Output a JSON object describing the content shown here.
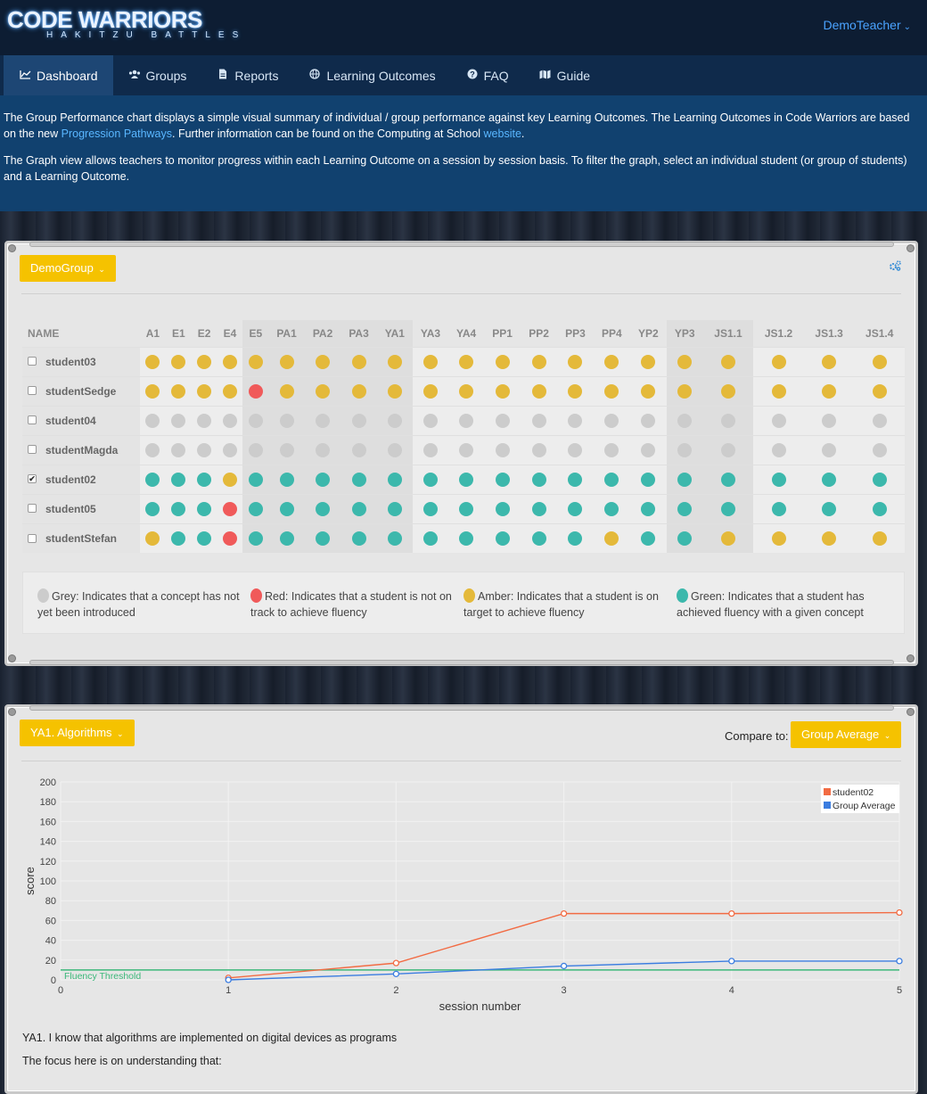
{
  "logo": {
    "main": "CODE WARRIORS",
    "sub": "HAKITZU BATTLES"
  },
  "user_menu": {
    "label": "DemoTeacher"
  },
  "nav": {
    "items": [
      {
        "label": "Dashboard",
        "icon": "chart-line-icon"
      },
      {
        "label": "Groups",
        "icon": "users-icon"
      },
      {
        "label": "Reports",
        "icon": "file-icon"
      },
      {
        "label": "Learning Outcomes",
        "icon": "globe-icon"
      },
      {
        "label": "FAQ",
        "icon": "question-circle-icon"
      },
      {
        "label": "Guide",
        "icon": "map-icon"
      }
    ]
  },
  "intro": {
    "p1_part1": "The Group Performance chart displays a simple visual summary of individual / group performance against key Learning Outcomes. The Learning Outcomes in Code Warriors are based on the new ",
    "p1_link1": "Progression Pathways",
    "p1_part2": ". Further information can be found on the Computing at School ",
    "p1_link2": "website",
    "p1_part3": ".",
    "p2": "The Graph view allows teachers to monitor progress within each Learning Outcome on a session by session basis. To filter the graph, select an individual student (or group of students) and a Learning Outcome."
  },
  "group_panel": {
    "group_dropdown": "DemoGroup",
    "settings_icon": "cogs-icon",
    "name_header": "NAME",
    "columns": [
      "A1",
      "E1",
      "E2",
      "E4",
      "E5",
      "PA1",
      "PA2",
      "PA3",
      "YA1",
      "YA3",
      "YA4",
      "PP1",
      "PP2",
      "PP3",
      "PP4",
      "YP2",
      "YP3",
      "JS1.1",
      "JS1.2",
      "JS1.3",
      "JS1.4"
    ],
    "students": [
      {
        "name": "student03",
        "checked": false,
        "status": [
          "A",
          "A",
          "A",
          "A",
          "A",
          "A",
          "A",
          "A",
          "A",
          "A",
          "A",
          "A",
          "A",
          "A",
          "A",
          "A",
          "A",
          "A",
          "A",
          "A",
          "A"
        ]
      },
      {
        "name": "studentSedge",
        "checked": false,
        "status": [
          "A",
          "A",
          "A",
          "A",
          "R",
          "A",
          "A",
          "A",
          "A",
          "A",
          "A",
          "A",
          "A",
          "A",
          "A",
          "A",
          "A",
          "A",
          "A",
          "A",
          "A"
        ]
      },
      {
        "name": "student04",
        "checked": false,
        "status": [
          "G",
          "G",
          "G",
          "G",
          "G",
          "G",
          "G",
          "G",
          "G",
          "G",
          "G",
          "G",
          "G",
          "G",
          "G",
          "G",
          "G",
          "G",
          "G",
          "G",
          "G"
        ]
      },
      {
        "name": "studentMagda",
        "checked": false,
        "status": [
          "G",
          "G",
          "G",
          "G",
          "G",
          "G",
          "G",
          "G",
          "G",
          "G",
          "G",
          "G",
          "G",
          "G",
          "G",
          "G",
          "G",
          "G",
          "G",
          "G",
          "G"
        ]
      },
      {
        "name": "student02",
        "checked": true,
        "status": [
          "T",
          "T",
          "T",
          "A",
          "T",
          "T",
          "T",
          "T",
          "T",
          "T",
          "T",
          "T",
          "T",
          "T",
          "T",
          "T",
          "T",
          "T",
          "T",
          "T",
          "T"
        ]
      },
      {
        "name": "student05",
        "checked": false,
        "status": [
          "T",
          "T",
          "T",
          "R",
          "T",
          "T",
          "T",
          "T",
          "T",
          "T",
          "T",
          "T",
          "T",
          "T",
          "T",
          "T",
          "T",
          "T",
          "T",
          "T",
          "T"
        ]
      },
      {
        "name": "studentStefan",
        "checked": false,
        "status": [
          "A",
          "T",
          "T",
          "R",
          "T",
          "T",
          "T",
          "T",
          "T",
          "T",
          "T",
          "T",
          "T",
          "T",
          "A",
          "T",
          "T",
          "A",
          "A",
          "A",
          "A"
        ]
      }
    ],
    "status_colors": {
      "A": "#e4b93a",
      "R": "#f05a5a",
      "G": "#cccccc",
      "T": "#3cb8ac"
    },
    "legend": [
      {
        "key": "G",
        "text": "Grey: Indicates that a concept has not yet been introduced"
      },
      {
        "key": "R",
        "text": "Red: Indicates that a student is not on track to achieve fluency"
      },
      {
        "key": "A",
        "text": "Amber: Indicates that a student is on target to achieve fluency"
      },
      {
        "key": "T",
        "text": "Green: Indicates that a student has achieved fluency with a given concept"
      }
    ]
  },
  "chart_panel": {
    "outcome_dropdown": "YA1. Algorithms",
    "compare_label": "Compare to:",
    "compare_dropdown": "Group Average",
    "description_1": "YA1. I know that algorithms are implemented on digital devices as programs",
    "description_2": "The focus here is on understanding that:"
  },
  "chart_data": {
    "type": "line",
    "xlabel": "session number",
    "ylabel": "score",
    "xlim": [
      0,
      5
    ],
    "ylim": [
      0,
      200
    ],
    "xticks": [
      0,
      1,
      2,
      3,
      4,
      5
    ],
    "yticks": [
      0,
      20,
      40,
      60,
      80,
      100,
      120,
      140,
      160,
      180,
      200
    ],
    "series": [
      {
        "name": "student02",
        "color": "#f26b43",
        "x": [
          1,
          2,
          3,
          4,
          5
        ],
        "y": [
          2,
          17,
          67,
          67,
          68
        ]
      },
      {
        "name": "Group Average",
        "color": "#3b7de0",
        "x": [
          1,
          2,
          3,
          4,
          5
        ],
        "y": [
          0,
          6,
          14,
          19,
          19
        ]
      }
    ],
    "threshold": {
      "label": "Fluency Threshold",
      "value": 10,
      "color": "#3cb87a"
    },
    "legend_position": "top-right"
  }
}
